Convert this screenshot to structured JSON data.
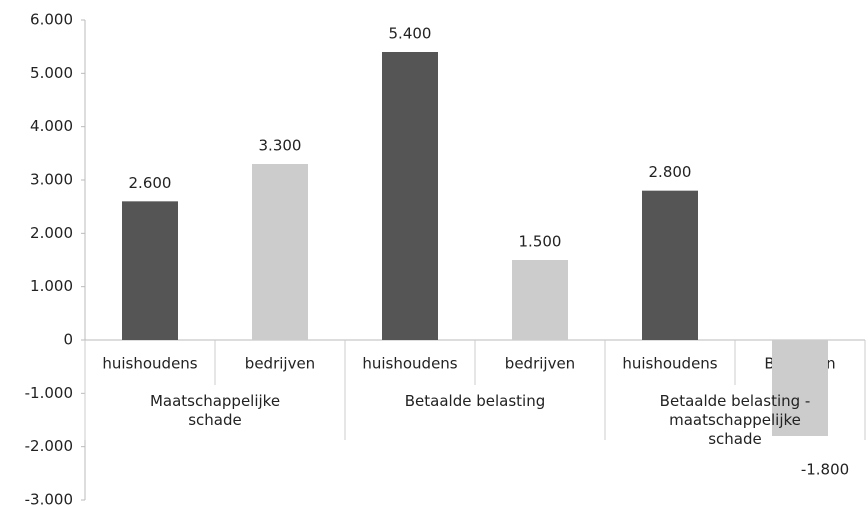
{
  "chart_data": {
    "type": "bar",
    "categories": [
      "huishoudens",
      "bedrijven",
      "huishoudens",
      "bedrijven",
      "huishoudens",
      "Bedrijven"
    ],
    "groups": [
      "Maatschappelijke schade",
      "Betaalde belasting",
      "Betaalde belasting - maatschappelijke schade"
    ],
    "values": [
      2600,
      3300,
      5400,
      1500,
      2800,
      -1800
    ],
    "value_labels": [
      "2.600",
      "3.300",
      "5.400",
      "1.500",
      "2.800",
      "-1.800"
    ],
    "colors": [
      "#555555",
      "#cccccc",
      "#555555",
      "#cccccc",
      "#555555",
      "#cccccc"
    ],
    "ylim": [
      -3000,
      6000
    ],
    "yticks": [
      {
        "value": -3000,
        "label": "-3.000"
      },
      {
        "value": -2000,
        "label": "-2.000"
      },
      {
        "value": -1000,
        "label": "-1.000"
      },
      0,
      {
        "value": 1000,
        "label": "1.000"
      },
      {
        "value": 2000,
        "label": "2.000"
      },
      {
        "value": 3000,
        "label": "3.000"
      },
      {
        "value": 4000,
        "label": "4.000"
      },
      {
        "value": 5000,
        "label": "5.000"
      },
      {
        "value": 6000,
        "label": "6.000"
      }
    ]
  }
}
